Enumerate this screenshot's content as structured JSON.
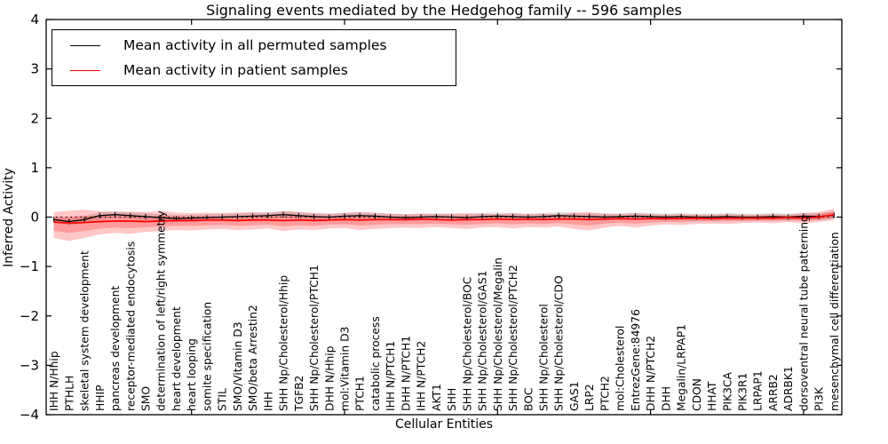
{
  "figure": {
    "title": "Signaling events mediated by the Hedgehog family -- 596 samples",
    "xlabel": "Cellular Entities",
    "ylabel": "Inferred Activity",
    "legend": [
      {
        "label": "Mean activity in all permuted samples",
        "color": "#000000"
      },
      {
        "label": "Mean activity in patient samples",
        "color": "#ff0000"
      }
    ]
  },
  "chart_data": {
    "type": "line",
    "title": "Signaling events mediated by the Hedgehog family -- 596 samples",
    "xlabel": "Cellular Entities",
    "ylabel": "Inferred Activity",
    "ylim": [
      -4,
      4
    ],
    "yticks": [
      "4",
      "3",
      "2",
      "1",
      "0",
      "−1",
      "−2",
      "−3",
      "−4"
    ],
    "xticks_major": [
      10,
      20,
      30,
      40,
      50
    ],
    "grid": false,
    "legend_position": "upper left",
    "zero_line": 0,
    "categories": [
      "IHH N/Hhip",
      "PTHLH",
      "skeletal system development",
      "HHIP",
      "pancreas development",
      "receptor-mediated endocytosis",
      "SMO",
      "determination of left/right symmetry",
      "heart development",
      "heart looping",
      "somite specification",
      "STIL",
      "SMO/Vitamin D3",
      "SMO/beta Arrestin2",
      "IHH",
      "SHH Np/Cholesterol/Hhip",
      "TGFB2",
      "SHH Np/Cholesterol/PTCH1",
      "DHH N/Hhip",
      "mol:Vitamin D3",
      "PTCH1",
      "catabolic process",
      "IHH N/PTCH1",
      "DHH N/PTCH1",
      "IHH N/PTCH2",
      "AKT1",
      "SHH",
      "SHH Np/Cholesterol/BOC",
      "SHH Np/Cholesterol/GAS1",
      "SHH Np/Cholesterol/Megalin",
      "SHH Np/Cholesterol/PTCH2",
      "BOC",
      "SHH Np/Cholesterol",
      "SHH Np/Cholesterol/CDO",
      "GAS1",
      "LRP2",
      "PTCH2",
      "mol:Cholesterol",
      "EntrezGene:84976",
      "DHH N/PTCH2",
      "DHH",
      "Megalin/LRPAP1",
      "CDON",
      "HHAT",
      "PIK3CA",
      "PIK3R1",
      "LRPAP1",
      "ARRB2",
      "ADRBK1",
      "dorsoventral neural tube patterning",
      "PI3K",
      "mesenchymal cell differentiation"
    ],
    "series": [
      {
        "name": "Mean activity in all permuted samples",
        "color": "#000000",
        "values": [
          -0.05,
          -0.09,
          -0.05,
          0.03,
          0.05,
          0.03,
          0.01,
          -0.01,
          -0.03,
          -0.02,
          -0.01,
          0.0,
          0.01,
          0.02,
          0.03,
          0.05,
          0.03,
          0.01,
          0.0,
          0.02,
          0.03,
          0.02,
          0.0,
          -0.01,
          0.0,
          0.01,
          0.0,
          -0.01,
          0.01,
          0.02,
          0.01,
          0.0,
          0.01,
          0.03,
          0.02,
          0.01,
          0.0,
          0.01,
          0.02,
          0.01,
          0.0,
          0.01,
          0.0,
          0.0,
          0.01,
          0.0,
          0.0,
          0.01,
          0.0,
          0.02,
          0.01,
          0.04
        ]
      },
      {
        "name": "Mean activity in patient samples",
        "color": "#ff0000",
        "values": [
          -0.1,
          -0.12,
          -0.11,
          -0.09,
          -0.08,
          -0.08,
          -0.09,
          -0.08,
          -0.07,
          -0.07,
          -0.06,
          -0.06,
          -0.07,
          -0.06,
          -0.06,
          -0.07,
          -0.06,
          -0.07,
          -0.06,
          -0.05,
          -0.06,
          -0.05,
          -0.05,
          -0.05,
          -0.04,
          -0.05,
          -0.06,
          -0.05,
          -0.05,
          -0.04,
          -0.05,
          -0.04,
          -0.05,
          -0.04,
          -0.04,
          -0.05,
          -0.04,
          -0.03,
          -0.04,
          -0.03,
          -0.03,
          -0.03,
          -0.02,
          -0.03,
          -0.02,
          -0.02,
          -0.02,
          -0.02,
          -0.01,
          -0.02,
          0.0,
          0.05
        ]
      }
    ],
    "bands": [
      {
        "name": "permuted-samples-range",
        "color": "rgba(0,0,0,0.13)",
        "center_series": 0,
        "halfwidth": 0.07
      },
      {
        "name": "patient-samples-range",
        "color": "rgba(255,0,0,0.22)",
        "upper": [
          0.1,
          0.13,
          0.15,
          0.12,
          0.1,
          0.11,
          0.1,
          0.12,
          0.09,
          0.08,
          0.09,
          0.08,
          0.09,
          0.1,
          0.08,
          0.12,
          0.1,
          0.08,
          0.07,
          0.08,
          0.1,
          0.08,
          0.07,
          0.06,
          0.07,
          0.06,
          0.07,
          0.08,
          0.07,
          0.06,
          0.08,
          0.06,
          0.07,
          0.06,
          0.09,
          0.1,
          0.07,
          0.06,
          0.08,
          0.06,
          0.05,
          0.06,
          0.05,
          0.05,
          0.06,
          0.05,
          0.05,
          0.06,
          0.05,
          0.08,
          0.1,
          0.17
        ],
        "lower": [
          -0.42,
          -0.48,
          -0.42,
          -0.35,
          -0.32,
          -0.34,
          -0.3,
          -0.28,
          -0.26,
          -0.27,
          -0.25,
          -0.24,
          -0.26,
          -0.25,
          -0.23,
          -0.28,
          -0.25,
          -0.26,
          -0.23,
          -0.22,
          -0.26,
          -0.24,
          -0.22,
          -0.21,
          -0.22,
          -0.2,
          -0.22,
          -0.24,
          -0.21,
          -0.2,
          -0.23,
          -0.2,
          -0.21,
          -0.19,
          -0.24,
          -0.27,
          -0.21,
          -0.18,
          -0.21,
          -0.17,
          -0.15,
          -0.16,
          -0.14,
          -0.13,
          -0.14,
          -0.12,
          -0.11,
          -0.12,
          -0.1,
          -0.13,
          -0.1,
          -0.06
        ]
      }
    ]
  }
}
